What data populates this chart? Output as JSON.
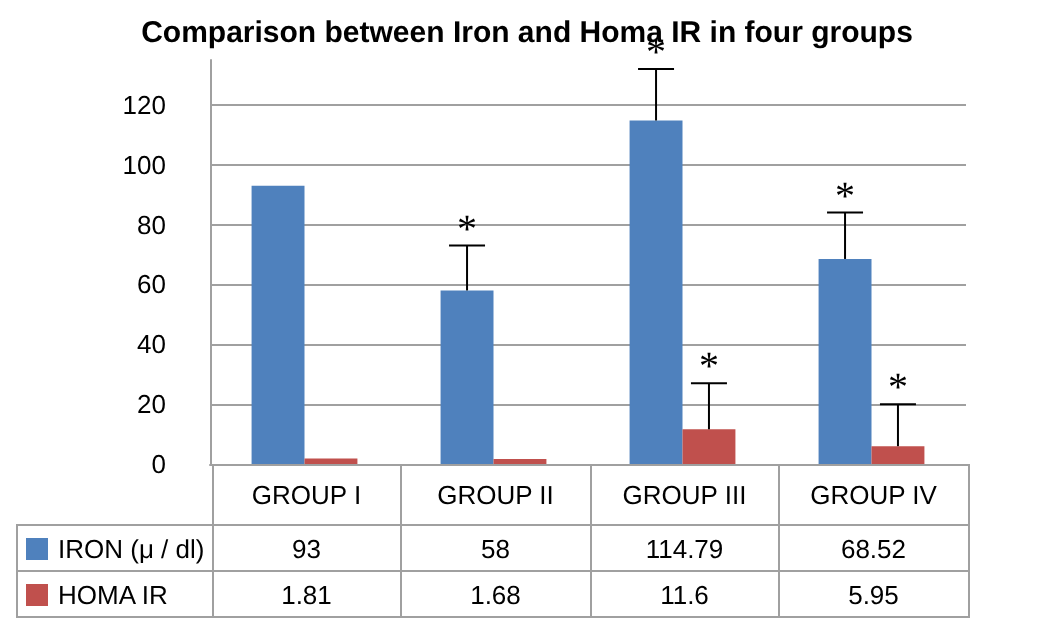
{
  "chart_data": {
    "type": "bar",
    "title": "Comparison between Iron and Homa IR in four groups",
    "categories": [
      "GROUP I",
      "GROUP II",
      "GROUP  III",
      "GROUP  IV"
    ],
    "series": [
      {
        "name": "IRON (μ / dl)",
        "color": "#4f81bd",
        "values": [
          93,
          58,
          114.79,
          68.52
        ],
        "errors": [
          null,
          [
            58,
            73
          ],
          [
            114.79,
            132
          ],
          [
            68.52,
            84
          ]
        ]
      },
      {
        "name": "HOMA IR",
        "color": "#c0504d",
        "values": [
          1.81,
          1.68,
          11.6,
          5.95
        ],
        "errors": [
          null,
          null,
          [
            11.6,
            27
          ],
          [
            5.95,
            20
          ]
        ]
      }
    ],
    "ylim": [
      0,
      135
    ],
    "yticks": [
      0,
      20,
      40,
      60,
      80,
      100,
      120
    ],
    "grid": "y",
    "legend": "bottom",
    "data_labels": true,
    "annotations": [
      "*",
      "*",
      "*",
      "*",
      "*"
    ]
  }
}
